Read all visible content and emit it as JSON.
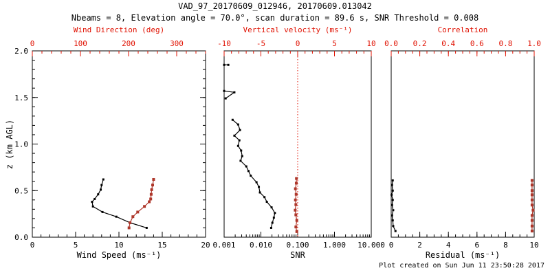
{
  "title": "VAD_97_20170609_012946, 20170609.013042",
  "subtitle": "Nbeams = 8, Elevation angle = 70.0°, scan duration = 89.6 s, SNR Threshold = 0.008",
  "footer": "Plot created on Sun Jun 11 23:50:28 2017",
  "colors": {
    "axis_red": "#e01000",
    "series_red": "#ae372b",
    "black": "#000000",
    "background": "#ffffff"
  },
  "chart_data": [
    {
      "type": "line",
      "panel": "wind",
      "y_axis": {
        "label": "z (km AGL)",
        "min": 0,
        "max": 2,
        "major": [
          0,
          0.5,
          1,
          1.5,
          2
        ],
        "major_labels": [
          "0.0",
          "0.5",
          "1.0",
          "1.5",
          "2.0"
        ],
        "minor_step": 0.1,
        "show_ticks": true,
        "show_labels": true
      },
      "x_bottom": {
        "label": "Wind Speed (ms⁻¹)",
        "min": 0,
        "max": 20,
        "major": [
          0,
          5,
          10,
          15,
          20
        ],
        "major_labels": [
          "0",
          "5",
          "10",
          "15",
          "20"
        ],
        "minor_step": 1
      },
      "x_top": {
        "label": "Wind Direction (deg)",
        "min": 0,
        "max": 360,
        "major": [
          0,
          100,
          200,
          300
        ],
        "major_labels": [
          "0",
          "100",
          "200",
          "300"
        ],
        "minor_step": 20
      },
      "series": [
        {
          "name": "wind_speed",
          "axis": "bottom",
          "color": "black",
          "marker": 3,
          "z": [
            0.1,
            0.155,
            0.22,
            0.27,
            0.33,
            0.38,
            0.41,
            0.46,
            0.51,
            0.56,
            0.62
          ],
          "v": [
            13.2,
            11.3,
            9.7,
            8.1,
            7.0,
            6.9,
            7.2,
            7.6,
            7.9,
            8.0,
            8.2
          ]
        },
        {
          "name": "wind_direction",
          "axis": "top",
          "color": "red",
          "marker": 4,
          "z": [
            0.1,
            0.155,
            0.22,
            0.27,
            0.33,
            0.38,
            0.41,
            0.46,
            0.51,
            0.56,
            0.62
          ],
          "v": [
            201,
            203,
            209,
            219,
            233,
            243,
            246,
            247,
            248,
            250,
            252
          ]
        }
      ]
    },
    {
      "type": "line",
      "panel": "snr",
      "y_axis": {
        "label": "",
        "min": 0,
        "max": 2,
        "major": [
          0,
          0.5,
          1,
          1.5,
          2
        ],
        "major_labels": [],
        "minor_step": 0.1,
        "show_ticks": false,
        "show_labels": false
      },
      "x_bottom": {
        "label": "SNR",
        "min": 0.001,
        "max": 10,
        "scale": "log",
        "major": [
          0.001,
          0.01,
          0.1,
          1,
          10
        ],
        "major_labels": [
          "0.001",
          "0.010",
          "0.100",
          "1.000",
          "10.000"
        ]
      },
      "x_top": {
        "label": "Vertical velocity (ms⁻¹)",
        "min": -10,
        "max": 10,
        "major": [
          -10,
          -5,
          0,
          5,
          10
        ],
        "major_labels": [
          "-10",
          "-5",
          "0",
          "5",
          "10"
        ],
        "minor_step": 1
      },
      "refline": {
        "axis": "top",
        "value": 0,
        "style": "dotted",
        "color": "red"
      },
      "series": [
        {
          "name": "snr_profile",
          "axis": "bottom",
          "color": "black",
          "marker": 3,
          "segments": [
            {
              "z": [
                1.85,
                1.85
              ],
              "v": [
                0.001,
                0.0013
              ]
            },
            {
              "z": [
                1.57,
                1.555,
                1.49
              ],
              "v": [
                0.001,
                0.0019,
                0.0011
              ]
            },
            {
              "z": [
                1.26,
                1.21,
                1.15,
                1.09,
                1.04,
                0.98,
                0.93,
                0.87,
                0.82,
                0.76,
                0.71,
                0.66,
                0.59,
                0.54,
                0.48,
                0.43,
                0.38,
                0.32,
                0.26,
                0.21,
                0.155,
                0.1
              ],
              "v": [
                0.0017,
                0.0024,
                0.0027,
                0.0019,
                0.0026,
                0.0024,
                0.0029,
                0.0031,
                0.0028,
                0.004,
                0.0046,
                0.0053,
                0.0076,
                0.0088,
                0.0094,
                0.0125,
                0.0145,
                0.0195,
                0.024,
                0.0225,
                0.0205,
                0.019
              ]
            }
          ]
        },
        {
          "name": "vertical_velocity",
          "axis": "top",
          "color": "red",
          "marker": 4,
          "z": [
            0.06,
            0.11,
            0.18,
            0.24,
            0.29,
            0.35,
            0.4,
            0.46,
            0.52,
            0.58,
            0.63
          ],
          "v": [
            -0.12,
            -0.25,
            -0.12,
            -0.25,
            -0.34,
            -0.25,
            -0.31,
            -0.21,
            -0.31,
            -0.19,
            -0.17
          ]
        }
      ]
    },
    {
      "type": "line",
      "panel": "residual",
      "y_axis": {
        "label": "",
        "min": 0,
        "max": 2,
        "major": [
          0,
          0.5,
          1,
          1.5,
          2
        ],
        "major_labels": [],
        "minor_step": 0.1,
        "show_ticks": false,
        "show_labels": false
      },
      "x_bottom": {
        "label": "Residual (ms⁻¹)",
        "min": 0,
        "max": 10,
        "major": [
          0,
          2,
          4,
          6,
          8,
          10
        ],
        "major_labels": [
          "0",
          "2",
          "4",
          "6",
          "8",
          "10"
        ],
        "minor_step": 0.5
      },
      "x_top": {
        "label": "Correlation",
        "min": 0,
        "max": 1,
        "major": [
          0,
          0.2,
          0.4,
          0.6,
          0.8,
          1
        ],
        "major_labels": [
          "0.0",
          "0.2",
          "0.4",
          "0.6",
          "0.8",
          "1.0"
        ],
        "minor_step": 0.05
      },
      "series": [
        {
          "name": "residual",
          "axis": "bottom",
          "color": "black",
          "marker": 3,
          "z": [
            0.066,
            0.12,
            0.18,
            0.234,
            0.29,
            0.345,
            0.4,
            0.455,
            0.5,
            0.56,
            0.61
          ],
          "v": [
            0.3,
            0.14,
            0.11,
            0.06,
            0.14,
            0.06,
            0.11,
            0.03,
            0.11,
            0.06,
            0.11
          ]
        },
        {
          "name": "correlation",
          "axis": "top",
          "color": "red",
          "marker": 4,
          "z": [
            0.066,
            0.12,
            0.18,
            0.234,
            0.29,
            0.345,
            0.4,
            0.455,
            0.5,
            0.56,
            0.61
          ],
          "v": [
            0.985,
            0.985,
            0.985,
            0.985,
            0.992,
            0.985,
            0.985,
            0.985,
            0.985,
            0.985,
            0.985
          ]
        }
      ]
    }
  ]
}
